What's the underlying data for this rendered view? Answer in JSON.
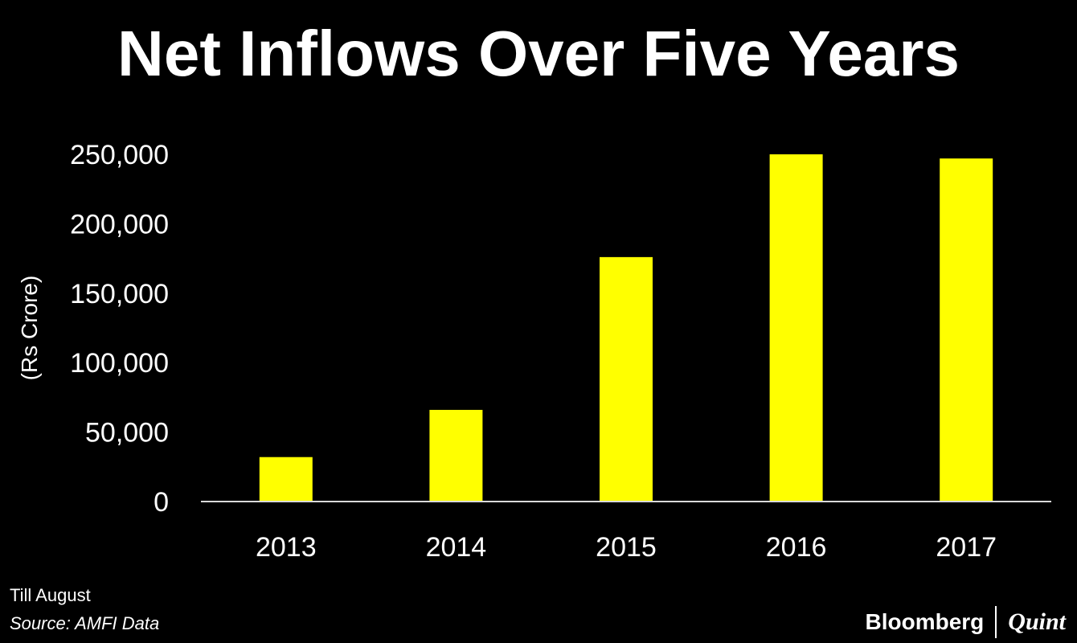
{
  "colors": {
    "background": "#000000",
    "text": "#ffffff",
    "bar": "#ffff00"
  },
  "chart_data": {
    "type": "bar",
    "title": "Net Inflows Over Five Years",
    "xlabel": "",
    "ylabel": "(Rs Crore)",
    "categories": [
      "2013",
      "2014",
      "2015",
      "2016",
      "2017"
    ],
    "values": [
      32000,
      66000,
      176000,
      250000,
      247000
    ],
    "ylim": [
      0,
      250000
    ],
    "yticks": [
      0,
      50000,
      100000,
      150000,
      200000,
      250000
    ],
    "ytick_labels": [
      "0",
      "50,000",
      "100,000",
      "150,000",
      "200,000",
      "250,000"
    ],
    "grid": false,
    "legend": "none"
  },
  "footer": {
    "note": "Till August",
    "source": "Source: AMFI Data"
  },
  "brand": {
    "primary": "Bloomberg",
    "secondary": "Quint"
  }
}
